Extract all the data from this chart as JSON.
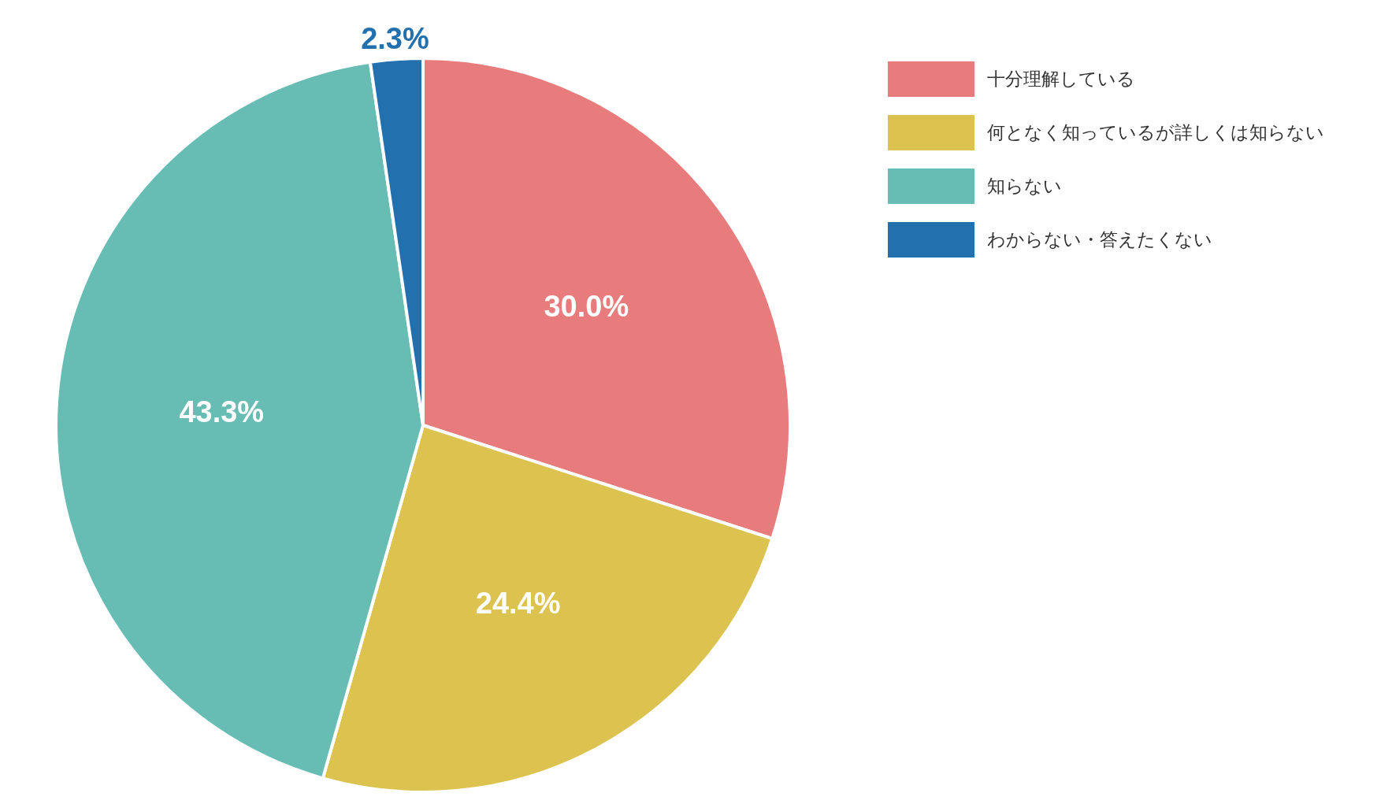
{
  "chart_data": {
    "type": "pie",
    "categories": [
      "十分理解している",
      "何となく知っているが詳しくは知らない",
      "知らない",
      "わからない・答えたくない"
    ],
    "values": [
      30.0,
      24.4,
      43.3,
      2.3
    ],
    "colors": [
      "#e87c7c",
      "#dcc24e",
      "#67bdb3",
      "#2270ad"
    ],
    "value_labels": [
      "30.0%",
      "24.4%",
      "43.3%",
      "2.3%"
    ],
    "legend": "top right"
  }
}
